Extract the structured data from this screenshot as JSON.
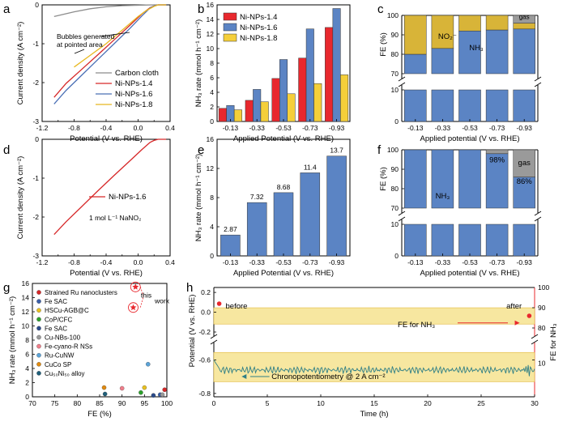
{
  "colors": {
    "carbon": "#8c8c8c",
    "ni14": "#d62728",
    "ni16": "#4a6fb5",
    "ni18": "#e8b820",
    "bar14": "#e8282e",
    "bar16": "#5b84c4",
    "bar18": "#f5cf3a",
    "nh3": "#5b84c4",
    "no2": "#d8b438",
    "gas": "#9a9a9a",
    "band": "#f7e7a0",
    "band_border": "#e2b93b",
    "chrono": "#2f7f86",
    "fe_axis": "#e8282e",
    "g_line": "#e8282e"
  },
  "chart_data": [
    {
      "panel": "a",
      "type": "line",
      "xlabel": "Potential (V vs. RHE)",
      "ylabel": "Current density (A cm⁻²)",
      "xlim": [
        -1.2,
        0.4
      ],
      "ylim": [
        -3,
        0
      ],
      "xticks": [
        "-1.2",
        "-0.8",
        "-0.4",
        "0.0",
        "0.4"
      ],
      "yticks": [
        "0",
        "-1",
        "-2",
        "-3"
      ],
      "annotation": "Bubbles generated at pointed area",
      "series": [
        {
          "name": "Carbon cloth",
          "x": [
            -1.05,
            -0.8,
            -0.6,
            -0.4,
            -0.2,
            0.0,
            0.1,
            0.2,
            0.3,
            0.35
          ],
          "y": [
            -0.3,
            -0.18,
            -0.1,
            -0.05,
            -0.02,
            -0.01,
            -0.005,
            0,
            0,
            0
          ]
        },
        {
          "name": "Ni-NPs-1.4",
          "x": [
            -1.05,
            -0.9,
            -0.7,
            -0.5,
            -0.3,
            -0.1,
            0.05,
            0.15,
            0.2,
            0.25,
            0.35
          ],
          "y": [
            -2.38,
            -2.02,
            -1.65,
            -1.28,
            -0.9,
            -0.52,
            -0.23,
            -0.07,
            -0.03,
            0,
            0
          ]
        },
        {
          "name": "Ni-NPs-1.6",
          "x": [
            -1.05,
            -0.9,
            -0.7,
            -0.5,
            -0.3,
            -0.1,
            0.05,
            0.15,
            0.2,
            0.25,
            0.35
          ],
          "y": [
            -2.55,
            -2.2,
            -1.8,
            -1.4,
            -1.0,
            -0.6,
            -0.28,
            -0.08,
            -0.03,
            0,
            0
          ]
        },
        {
          "name": "Ni-NPs-1.8",
          "x": [
            -0.8,
            -0.6,
            -0.4,
            -0.2,
            0.0,
            0.1,
            0.2,
            0.25,
            0.35
          ],
          "y": [
            -1.6,
            -1.3,
            -1.0,
            -0.65,
            -0.3,
            -0.15,
            -0.04,
            0,
            0
          ]
        }
      ]
    },
    {
      "panel": "b",
      "type": "bar",
      "xlabel": "Applied Potential (V vs. RHE)",
      "ylabel": "NH₃ rate (mmol h⁻¹ cm⁻²)",
      "ylim": [
        0,
        16
      ],
      "yticks": [
        "0",
        "2",
        "4",
        "6",
        "8",
        "10",
        "12",
        "14",
        "16"
      ],
      "categories": [
        "-0.13",
        "-0.33",
        "-0.53",
        "-0.73",
        "-0.93"
      ],
      "series": [
        {
          "name": "Ni-NPs-1.4",
          "values": [
            1.8,
            2.9,
            5.9,
            8.7,
            12.9
          ]
        },
        {
          "name": "Ni-NPs-1.6",
          "values": [
            2.2,
            4.4,
            8.5,
            12.7,
            15.5
          ]
        },
        {
          "name": "Ni-NPs-1.8",
          "values": [
            1.6,
            2.7,
            3.8,
            5.2,
            6.4
          ]
        }
      ]
    },
    {
      "panel": "c",
      "type": "bar",
      "stacked": true,
      "xlabel": "Applied potential (V vs. RHE)",
      "ylabel": "FE (%)",
      "yticks_upper": [
        "70",
        "80",
        "90",
        "100"
      ],
      "yticks_lower": [
        "0",
        "10"
      ],
      "categories": [
        "-0.13",
        "-0.33",
        "-0.53",
        "-0.73",
        "-0.93"
      ],
      "series": [
        {
          "name": "NH₃",
          "values": [
            80,
            83,
            92,
            92.5,
            93
          ]
        },
        {
          "name": "NO₂⁻",
          "values": [
            20,
            17,
            8,
            7.5,
            3
          ]
        },
        {
          "name": "gas",
          "values": [
            0,
            0,
            0,
            0,
            4
          ]
        }
      ]
    },
    {
      "panel": "d",
      "type": "line",
      "xlabel": "Potential (V vs. RHE)",
      "ylabel": "Current density (A cm⁻²)",
      "xlim": [
        -1.2,
        0.4
      ],
      "ylim": [
        -3,
        0
      ],
      "xticks": [
        "-1.2",
        "-0.8",
        "-0.4",
        "0.0",
        "0.4"
      ],
      "yticks": [
        "0",
        "-1",
        "-2",
        "-3"
      ],
      "annotation": "1 mol L⁻¹ NaNO₂",
      "series": [
        {
          "name": "Ni-NPs-1.6",
          "x": [
            -1.05,
            -0.9,
            -0.7,
            -0.5,
            -0.3,
            -0.1,
            0.05,
            0.15,
            0.2,
            0.25,
            0.35
          ],
          "y": [
            -2.45,
            -2.12,
            -1.72,
            -1.32,
            -0.93,
            -0.55,
            -0.26,
            -0.08,
            -0.03,
            0,
            0
          ]
        }
      ]
    },
    {
      "panel": "e",
      "type": "bar",
      "xlabel": "Applied Potential (V vs. RHE)",
      "ylabel": "NH₃ rate (mmol h⁻¹ cm⁻²)",
      "ylim": [
        0,
        16
      ],
      "yticks": [
        "0",
        "4",
        "8",
        "12",
        "16"
      ],
      "categories": [
        "-0.13",
        "-0.33",
        "-0.53",
        "-0.73",
        "-0.93"
      ],
      "values": [
        2.87,
        7.32,
        8.68,
        11.4,
        13.7
      ],
      "labels": [
        "2.87",
        "7.32",
        "8.68",
        "11.4",
        "13.7"
      ]
    },
    {
      "panel": "f",
      "type": "bar",
      "stacked": true,
      "xlabel": "Applied potential (V vs. RHE)",
      "ylabel": "FE (%)",
      "yticks_upper": [
        "70",
        "80",
        "90",
        "100"
      ],
      "yticks_lower": [
        "0",
        "10"
      ],
      "categories": [
        "-0.13",
        "-0.33",
        "-0.53",
        "-0.73",
        "-0.93"
      ],
      "series": [
        {
          "name": "NH₃",
          "values": [
            100,
            100,
            100,
            98,
            86
          ]
        },
        {
          "name": "gas",
          "values": [
            0,
            0,
            0,
            2,
            14
          ]
        }
      ],
      "annotations": [
        "98%",
        "86%",
        "gas",
        "NH₃"
      ]
    },
    {
      "panel": "g",
      "type": "scatter",
      "xlabel": "FE (%)",
      "ylabel": "NH₃ rate (mmol h⁻¹ cm⁻²)",
      "xlim": [
        70,
        100
      ],
      "ylim": [
        0,
        16
      ],
      "xticks": [
        "70",
        "75",
        "80",
        "85",
        "90",
        "95",
        "100"
      ],
      "yticks": [
        "0",
        "2",
        "4",
        "6",
        "8",
        "10",
        "12",
        "14",
        "16"
      ],
      "annotation": "this work",
      "series": [
        {
          "name": "Strained Ru nanoclusters",
          "color": "#d62728",
          "x": [
            99.5
          ],
          "y": [
            1.0
          ]
        },
        {
          "name": "Fe SAC",
          "color": "#3b5fa8",
          "x": [
            98.5
          ],
          "y": [
            0.3
          ]
        },
        {
          "name": "HSCu-AGB@C",
          "color": "#e8c020",
          "x": [
            95.0
          ],
          "y": [
            1.3
          ]
        },
        {
          "name": "CoP/CFC",
          "color": "#2ca02c",
          "x": [
            94.2
          ],
          "y": [
            0.6
          ]
        },
        {
          "name": "Fe SAC",
          "color": "#2a4a8a",
          "x": [
            97.0
          ],
          "y": [
            0.2
          ]
        },
        {
          "name": "Cu-NBs-100",
          "color": "#9a9a9a",
          "x": [
            99.0
          ],
          "y": [
            0.3
          ]
        },
        {
          "name": "Fe-cyano-R NSs",
          "color": "#f07e8a",
          "x": [
            90.0
          ],
          "y": [
            1.2
          ]
        },
        {
          "name": "Ru-CuNW",
          "color": "#5ba3d8",
          "x": [
            95.8
          ],
          "y": [
            4.6
          ]
        },
        {
          "name": "CuCo SP",
          "color": "#e08a10",
          "x": [
            86.0
          ],
          "y": [
            1.3
          ]
        },
        {
          "name": "Cu₅₀Ni₅₀ alloy",
          "color": "#1f5f7a",
          "x": [
            86.2
          ],
          "y": [
            0.4
          ]
        },
        {
          "name": "this work (Ni-NPs-1.6, NO₃⁻)",
          "color": "#e8282e",
          "x": [
            93.0
          ],
          "y": [
            15.5
          ]
        },
        {
          "name": "this work (Ni-NPs-1.6, NO₂⁻)",
          "color": "#e8282e",
          "x": [
            92.5
          ],
          "y": [
            12.6
          ]
        }
      ]
    },
    {
      "panel": "h",
      "type": "line",
      "xlabel": "Time (h)",
      "ylabel": "Potential (V vs. RHE)",
      "ylabel_right": "FE for NH₃",
      "xlim": [
        0,
        30
      ],
      "xticks": [
        "0",
        "5",
        "10",
        "15",
        "20",
        "25",
        "30"
      ],
      "yticks_left_upper": [
        "-0.2",
        "0.0",
        "0.2"
      ],
      "yticks_left_lower": [
        "-0.8",
        "-0.6"
      ],
      "yticks_right_upper": [
        "80",
        "90",
        "100"
      ],
      "yticks_right_lower": [
        "10"
      ],
      "texts": {
        "before": "before",
        "after": "after",
        "fe": "FE for NH₃",
        "chrono": "Chronopotentiometry @ 2 A cm⁻²"
      },
      "fe_points": [
        {
          "time": 0.5,
          "fe": 92
        },
        {
          "time": 29.5,
          "fe": 86
        }
      ],
      "potential_mean": -0.66
    }
  ]
}
